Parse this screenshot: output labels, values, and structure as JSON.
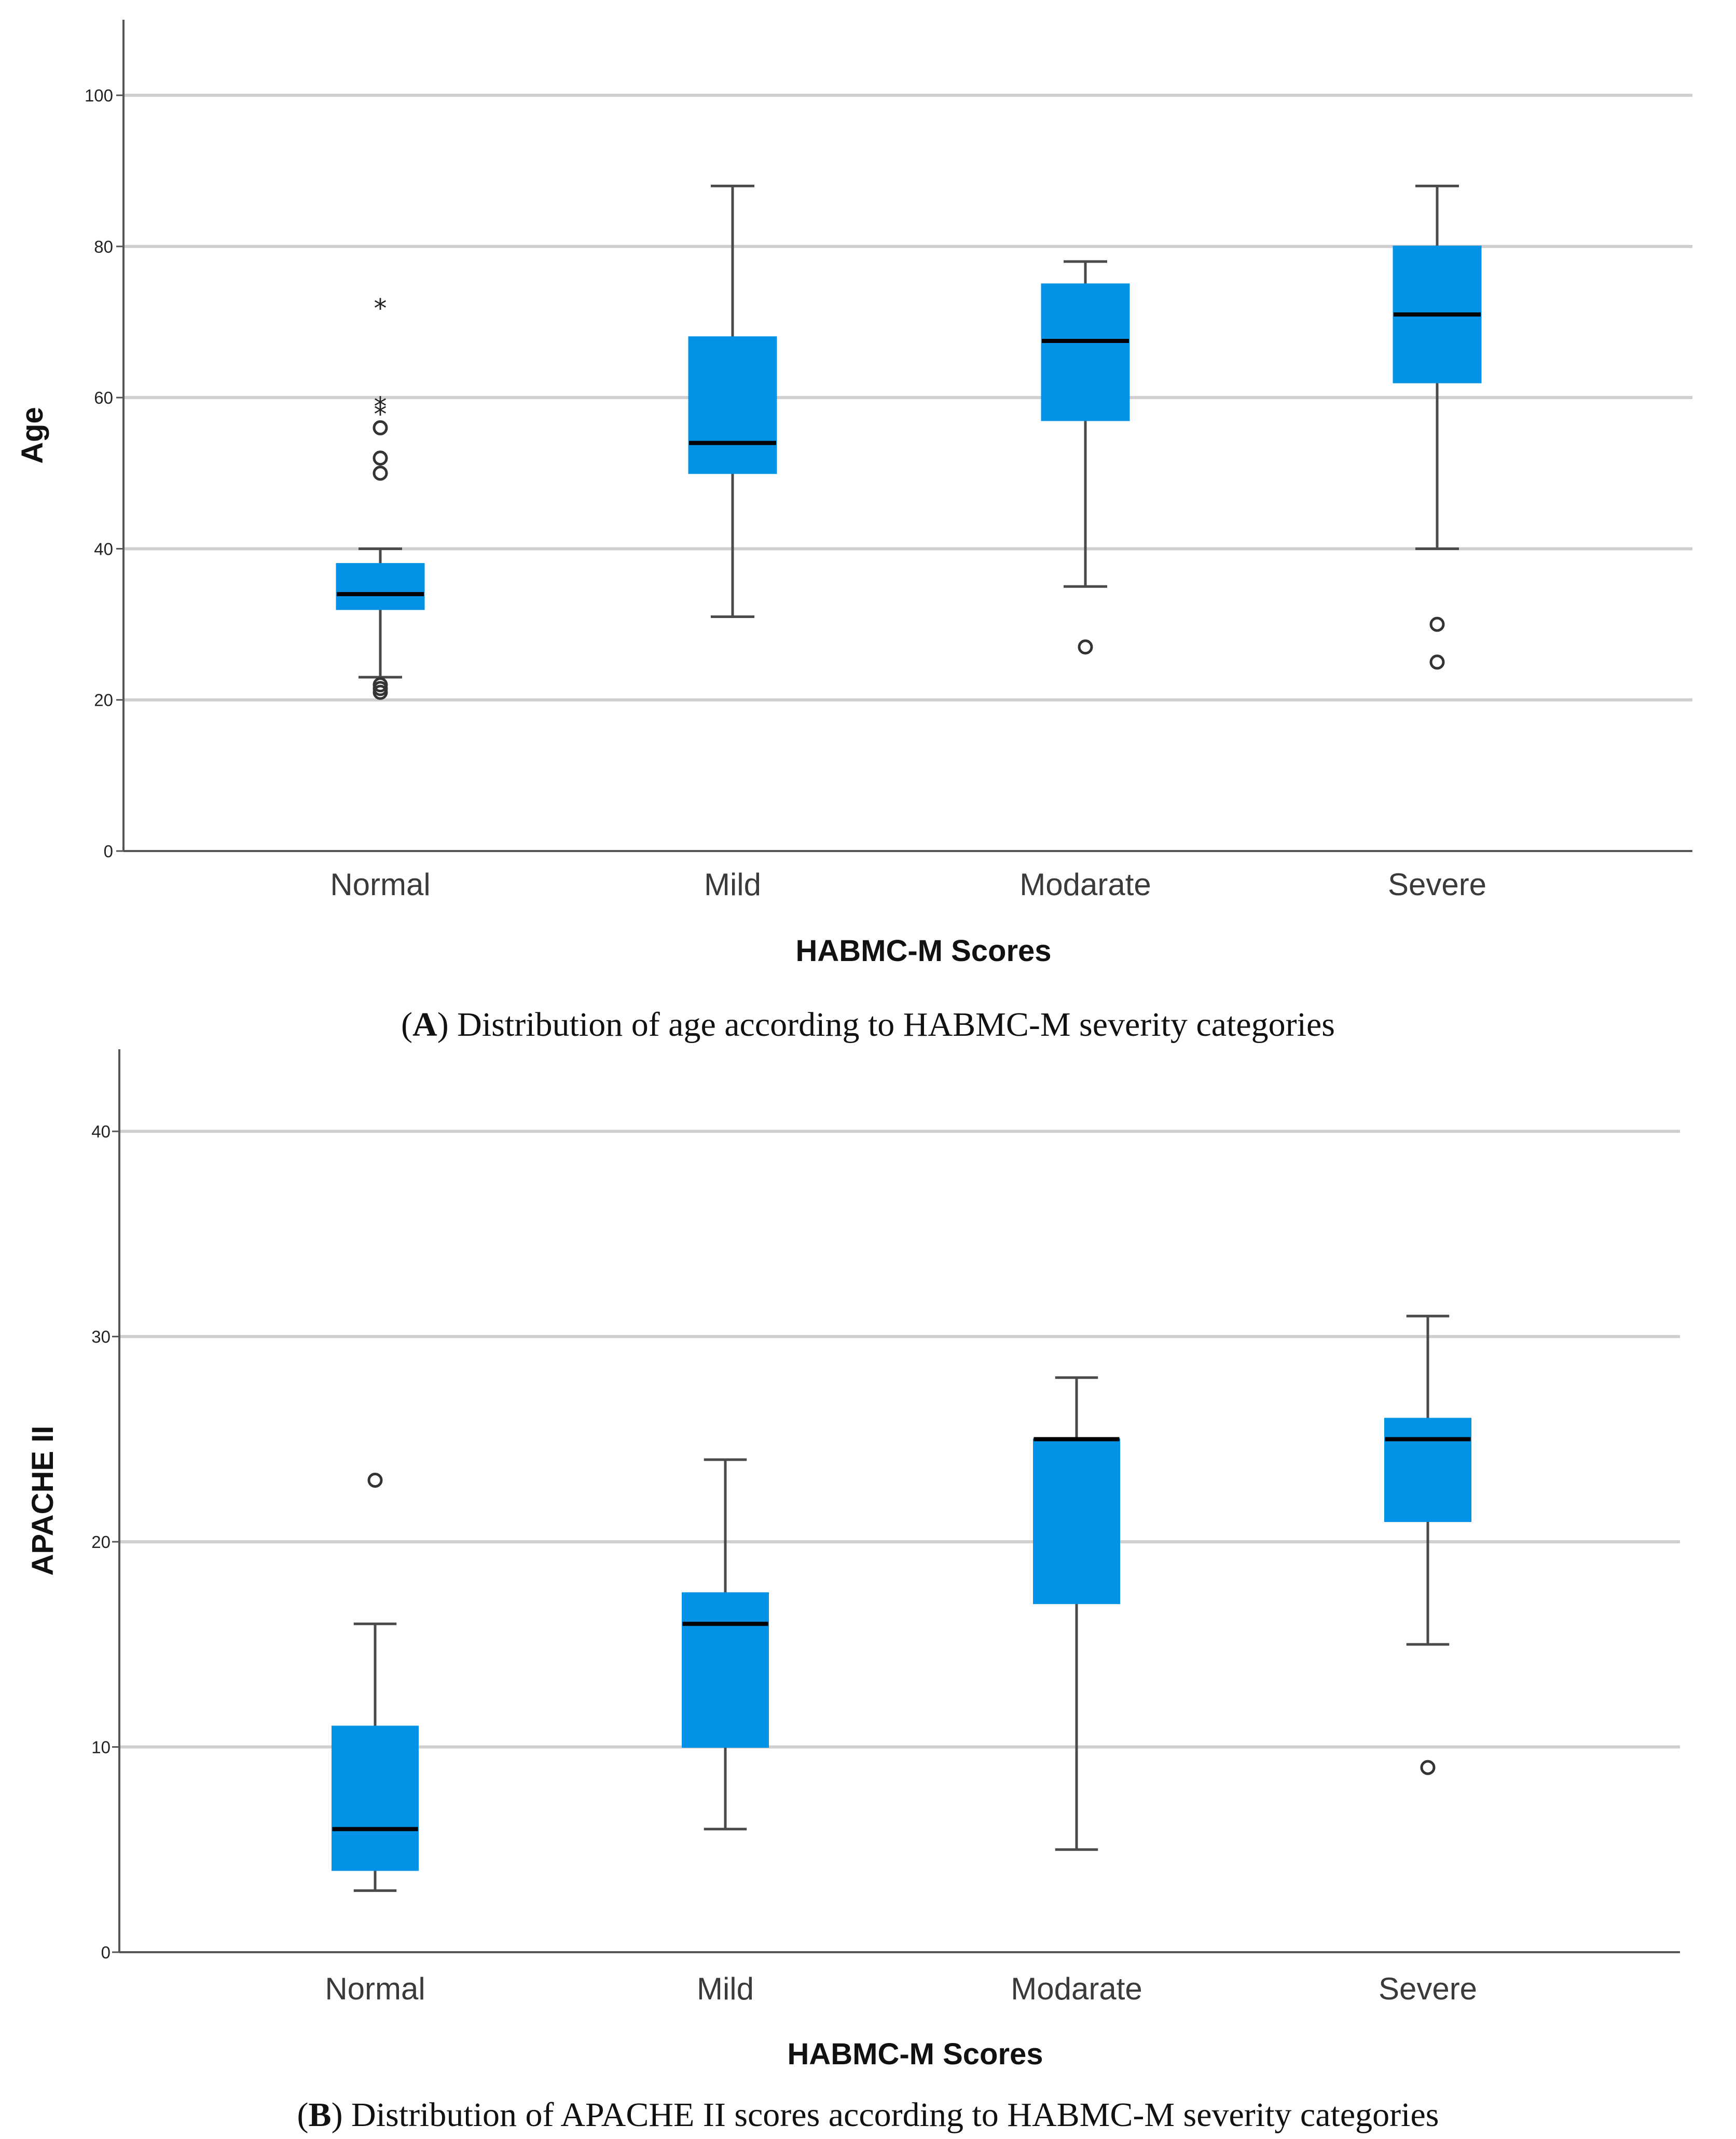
{
  "chart_data": [
    {
      "type": "boxplot",
      "panel": "A",
      "caption": {
        "letter": "A",
        "text": " Distribution of age according to HABMC-M severity categories"
      },
      "xlabel": "HABMC-M Scores",
      "ylabel": "Age",
      "ylim": [
        0,
        110
      ],
      "yticks": [
        0,
        20,
        40,
        60,
        80,
        100
      ],
      "grid": true,
      "colors": {
        "box": "#0392e6",
        "median": "#000000",
        "whisker": "#4a4a4a",
        "grid": "#cfcfcf"
      },
      "categories": [
        "Normal",
        "Mild",
        "Modarate",
        "Severe"
      ],
      "boxes": [
        {
          "category": "Normal",
          "whisker_low": 23,
          "q1": 32,
          "median": 34,
          "q3": 38,
          "whisker_high": 40,
          "outliers": [
            50,
            52,
            56,
            21,
            21.5,
            22
          ],
          "extremes": [
            72,
            59,
            58
          ]
        },
        {
          "category": "Mild",
          "whisker_low": 31,
          "q1": 50,
          "median": 54,
          "q3": 68,
          "whisker_high": 88,
          "outliers": [],
          "extremes": []
        },
        {
          "category": "Modarate",
          "whisker_low": 35,
          "q1": 57,
          "median": 67.5,
          "q3": 75,
          "whisker_high": 78,
          "outliers": [
            27
          ],
          "extremes": []
        },
        {
          "category": "Severe",
          "whisker_low": 40,
          "q1": 62,
          "median": 71,
          "q3": 80,
          "whisker_high": 88,
          "outliers": [
            30,
            25
          ],
          "extremes": []
        }
      ]
    },
    {
      "type": "boxplot",
      "panel": "B",
      "caption": {
        "letter": "B",
        "text": " Distribution of APACHE II scores according to HABMC-M severity categories"
      },
      "xlabel": "HABMC-M Scores",
      "ylabel": "APACHE II",
      "ylim": [
        0,
        44
      ],
      "yticks": [
        0,
        10,
        20,
        30,
        40
      ],
      "grid": true,
      "colors": {
        "box": "#0392e6",
        "median": "#000000",
        "whisker": "#4a4a4a",
        "grid": "#cfcfcf"
      },
      "categories": [
        "Normal",
        "Mild",
        "Modarate",
        "Severe"
      ],
      "boxes": [
        {
          "category": "Normal",
          "whisker_low": 3,
          "q1": 4,
          "median": 6,
          "q3": 11,
          "whisker_high": 16,
          "outliers": [
            23
          ],
          "extremes": []
        },
        {
          "category": "Mild",
          "whisker_low": 6,
          "q1": 10,
          "median": 16,
          "q3": 17.5,
          "whisker_high": 24,
          "outliers": [],
          "extremes": []
        },
        {
          "category": "Modarate",
          "whisker_low": 5,
          "q1": 17,
          "median": 25,
          "q3": 25,
          "whisker_high": 28,
          "outliers": [],
          "extremes": []
        },
        {
          "category": "Severe",
          "whisker_low": 15,
          "q1": 21,
          "median": 25,
          "q3": 26,
          "whisker_high": 31,
          "outliers": [
            9
          ],
          "extremes": []
        }
      ]
    }
  ]
}
